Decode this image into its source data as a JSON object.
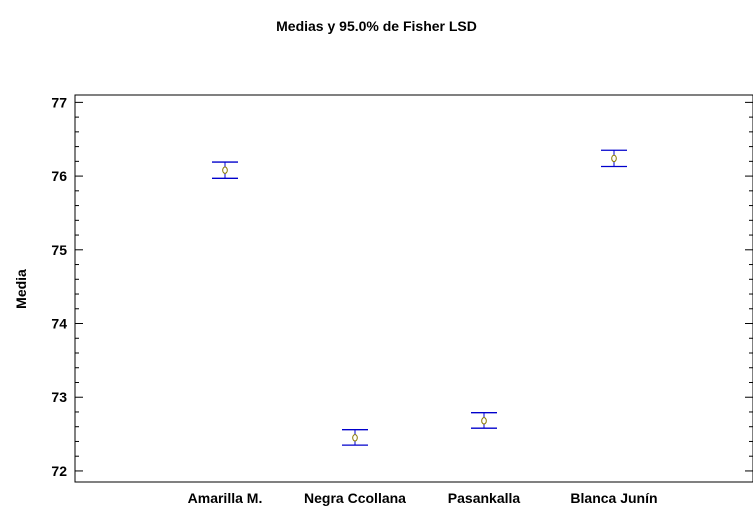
{
  "chart_data": {
    "type": "scatter",
    "title": "Medias y 95.0% de Fisher LSD",
    "xlabel": "",
    "ylabel": "Media",
    "categories": [
      "Amarilla M.",
      "Negra Ccollana",
      "Pasankalla",
      "Blanca Junín"
    ],
    "series": [
      {
        "means": [
          76.08,
          72.45,
          72.68,
          76.24
        ],
        "lower": [
          75.97,
          72.35,
          72.58,
          76.13
        ],
        "upper": [
          76.19,
          72.56,
          72.79,
          76.35
        ]
      }
    ],
    "ylim": [
      71.85,
      77.1
    ],
    "yticks": [
      72,
      73,
      74,
      75,
      76,
      77
    ],
    "grid": false,
    "colors": {
      "interval": "#0000cc",
      "mean_marker": "#8a7a00"
    }
  }
}
